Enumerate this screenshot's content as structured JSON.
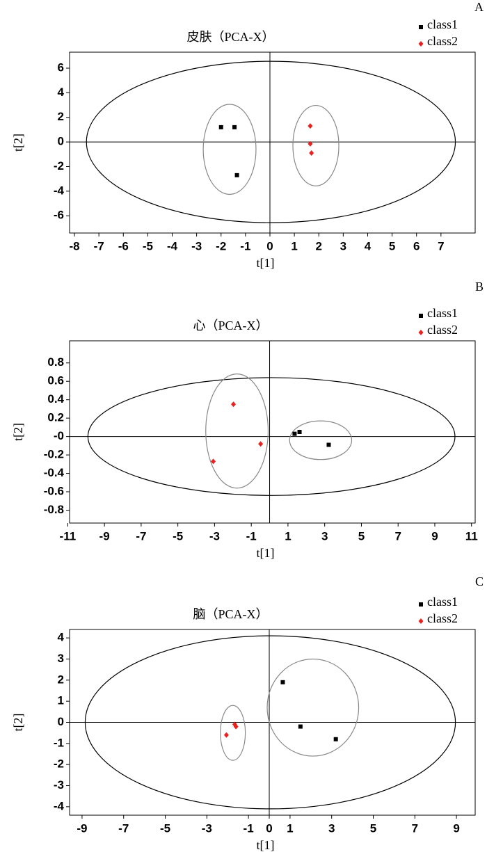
{
  "chart_data": [
    {
      "type": "scatter",
      "panel": "A",
      "title": "皮肤（PCA-X）",
      "x_label": "t[1]",
      "y_label": "t[2]",
      "xlim": [
        -8.2,
        8.4
      ],
      "ylim": [
        -7.4,
        7.3
      ],
      "xticks": [
        -8,
        -7,
        -6,
        -5,
        -4,
        -3,
        -2,
        -1,
        0,
        1,
        2,
        3,
        4,
        5,
        6,
        7
      ],
      "yticks": [
        -6,
        -4,
        -2,
        0,
        2,
        4,
        6
      ],
      "series": [
        {
          "name": "class1",
          "color": "#000000",
          "marker": "square",
          "x": [
            -2.0,
            -1.45,
            -1.35
          ],
          "y": [
            1.2,
            1.2,
            -2.7
          ]
        },
        {
          "name": "class2",
          "color": "#e8231f",
          "marker": "diamond",
          "x": [
            1.65,
            1.65,
            1.7
          ],
          "y": [
            1.3,
            -0.15,
            -0.9
          ]
        }
      ],
      "ellipses": [
        {
          "cx": 0.04,
          "cy": 0,
          "rx": 7.55,
          "ry": 6.56,
          "color": "#000000"
        },
        {
          "cx": -1.65,
          "cy": -0.6,
          "rx": 1.08,
          "ry": 3.66,
          "color": "#888888"
        },
        {
          "cx": 1.88,
          "cy": -0.3,
          "rx": 0.94,
          "ry": 3.27,
          "color": "#888888"
        }
      ]
    },
    {
      "type": "scatter",
      "panel": "B",
      "title": "心（PCA-X）",
      "x_label": "t[1]",
      "y_label": "t[2]",
      "xlim": [
        -10.9,
        11.2
      ],
      "ylim": [
        -0.94,
        1.04
      ],
      "xticks": [
        -11,
        -9,
        -7,
        -5,
        -3,
        -1,
        1,
        3,
        5,
        7,
        9,
        11
      ],
      "yticks": [
        -0.8,
        -0.6,
        -0.4,
        -0.2,
        {
          "value": 0,
          "label": "-0"
        },
        0.2,
        0.4,
        0.6,
        0.8
      ],
      "series": [
        {
          "name": "class1",
          "color": "#000000",
          "marker": "square",
          "x": [
            1.36,
            1.63,
            3.22
          ],
          "y": [
            0.03,
            0.05,
            -0.09
          ]
        },
        {
          "name": "class2",
          "color": "#e8231f",
          "marker": "diamond",
          "x": [
            -1.97,
            -0.49,
            -3.07
          ],
          "y": [
            0.35,
            -0.08,
            -0.27
          ]
        }
      ],
      "ellipses": [
        {
          "cx": 0.1,
          "cy": 0,
          "rx": 10.0,
          "ry": 0.64,
          "color": "#000000"
        },
        {
          "cx": -1.78,
          "cy": 0.06,
          "rx": 1.7,
          "ry": 0.62,
          "color": "#888888"
        },
        {
          "cx": 2.78,
          "cy": -0.04,
          "rx": 1.69,
          "ry": 0.21,
          "color": "#888888"
        }
      ]
    },
    {
      "type": "scatter",
      "panel": "C",
      "title": "脑（PCA-X）",
      "x_label": "t[1]",
      "y_label": "t[2]",
      "xlim": [
        -9.6,
        9.9
      ],
      "ylim": [
        -4.4,
        4.4
      ],
      "xticks": [
        -9,
        -7,
        -5,
        -3,
        -1,
        0,
        1,
        3,
        5,
        7,
        9
      ],
      "yticks": [
        -4,
        -3,
        -2,
        -1,
        0,
        1,
        2,
        3,
        4
      ],
      "series": [
        {
          "name": "class1",
          "color": "#000000",
          "marker": "square",
          "x": [
            0.65,
            1.5,
            3.2
          ],
          "y": [
            1.9,
            -0.2,
            -0.8
          ]
        },
        {
          "name": "class2",
          "color": "#e8231f",
          "marker": "diamond",
          "x": [
            -2.06,
            -1.66,
            -1.6
          ],
          "y": [
            -0.6,
            -0.1,
            -0.2
          ]
        }
      ],
      "ellipses": [
        {
          "cx": 0.05,
          "cy": 0,
          "rx": 8.9,
          "ry": 4.1,
          "color": "#000000"
        },
        {
          "cx": 2.1,
          "cy": 0.7,
          "rx": 2.2,
          "ry": 2.3,
          "color": "#888888"
        },
        {
          "cx": -1.75,
          "cy": -0.5,
          "rx": 0.6,
          "ry": 1.3,
          "color": "#888888"
        }
      ]
    }
  ]
}
